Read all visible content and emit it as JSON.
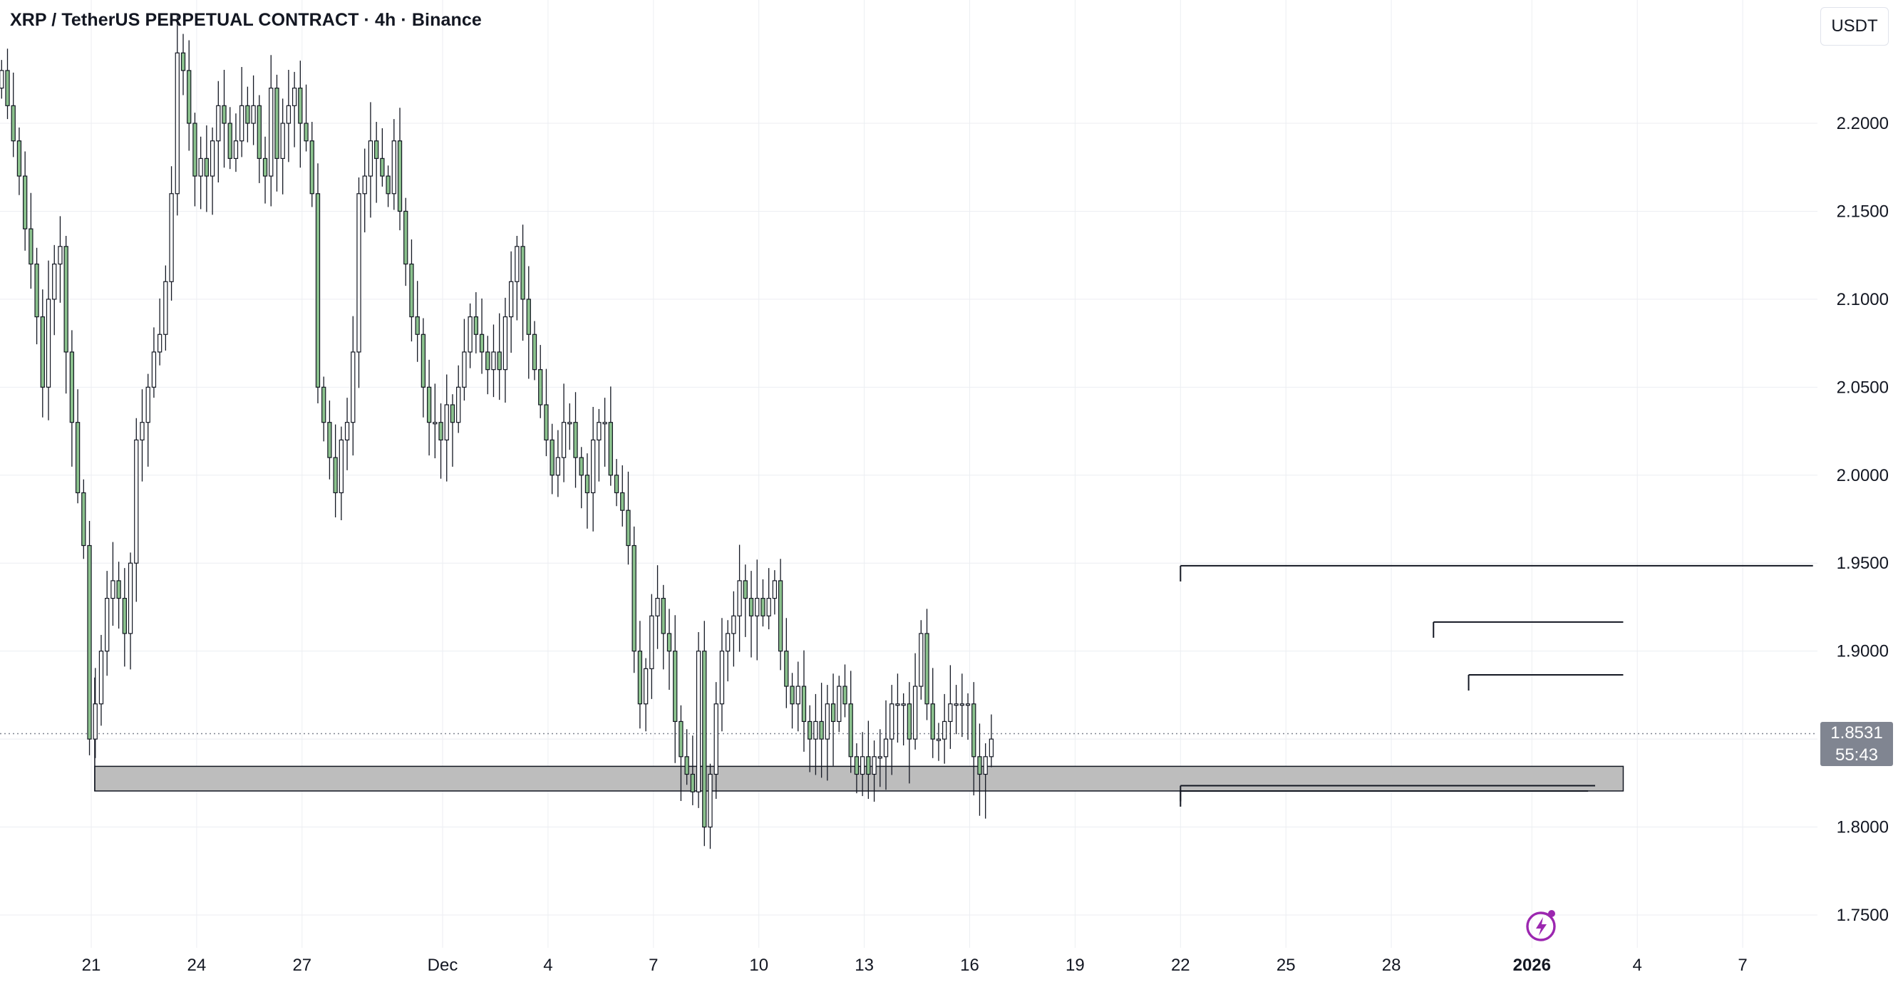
{
  "header": {
    "title": "XRP / TetherUS PERPETUAL CONTRACT · 4h · Binance",
    "currency_button": "USDT"
  },
  "last_price": {
    "label": "1.8531",
    "countdown": "55:43"
  },
  "colors": {
    "up_candle_body": "#ffffff",
    "down_candle_body": "#8bc28d",
    "candle_outline": "#131722",
    "grid": "#eceef2",
    "zone_fill": "#bdbdbd",
    "level_line": "#131722",
    "last_price_badge": "#808591",
    "logo_accent": "#9c27b0"
  },
  "icons": {
    "bottom_logo": "lightning-bolt-icon"
  },
  "chart_data": {
    "type": "candlestick",
    "title": "XRP / TetherUS PERPETUAL CONTRACT · 4h · Binance",
    "interval": "4h",
    "exchange": "Binance",
    "quote_currency": "USDT",
    "ylim": [
      1.73,
      2.28
    ],
    "grid": true,
    "y_ticks": [
      "2.2000",
      "2.1500",
      "2.1000",
      "2.0500",
      "2.0000",
      "1.9500",
      "1.9000",
      "1.8500",
      "1.8000",
      "1.7500"
    ],
    "x_ticks": [
      {
        "label": "21",
        "day": 0
      },
      {
        "label": "24",
        "day": 3
      },
      {
        "label": "27",
        "day": 6
      },
      {
        "label": "Dec",
        "day": 10
      },
      {
        "label": "4",
        "day": 13
      },
      {
        "label": "7",
        "day": 16
      },
      {
        "label": "10",
        "day": 19
      },
      {
        "label": "13",
        "day": 22
      },
      {
        "label": "16",
        "day": 25
      },
      {
        "label": "19",
        "day": 28
      },
      {
        "label": "22",
        "day": 31
      },
      {
        "label": "25",
        "day": 34
      },
      {
        "label": "28",
        "day": 37
      },
      {
        "label": "2026",
        "day": 41
      },
      {
        "label": "4",
        "day": 44
      },
      {
        "label": "7",
        "day": 47
      }
    ],
    "x_start_day": -2.6,
    "x_end_day": 49.2,
    "candles_per_day": 6,
    "first_candle_day": -2.55,
    "candle_closes": [
      2.23,
      2.21,
      2.19,
      2.17,
      2.14,
      2.12,
      2.09,
      2.05,
      2.1,
      2.12,
      2.13,
      2.07,
      2.03,
      1.99,
      1.96,
      1.85,
      1.87,
      1.9,
      1.93,
      1.94,
      1.93,
      1.91,
      1.95,
      2.02,
      2.03,
      2.05,
      2.07,
      2.08,
      2.11,
      2.16,
      2.24,
      2.23,
      2.2,
      2.17,
      2.18,
      2.17,
      2.19,
      2.21,
      2.2,
      2.18,
      2.19,
      2.21,
      2.2,
      2.21,
      2.18,
      2.17,
      2.22,
      2.18,
      2.2,
      2.21,
      2.22,
      2.2,
      2.19,
      2.16,
      2.05,
      2.03,
      2.01,
      1.99,
      2.02,
      2.03,
      2.07,
      2.16,
      2.17,
      2.19,
      2.18,
      2.17,
      2.16,
      2.19,
      2.15,
      2.12,
      2.09,
      2.08,
      2.05,
      2.03,
      2.03,
      2.02,
      2.04,
      2.03,
      2.05,
      2.07,
      2.09,
      2.08,
      2.07,
      2.06,
      2.07,
      2.06,
      2.09,
      2.11,
      2.13,
      2.1,
      2.08,
      2.06,
      2.04,
      2.02,
      2.0,
      2.01,
      2.03,
      2.03,
      2.01,
      2.0,
      1.99,
      2.02,
      2.03,
      2.03,
      2.0,
      1.99,
      1.98,
      1.96,
      1.9,
      1.87,
      1.89,
      1.92,
      1.93,
      1.91,
      1.9,
      1.86,
      1.84,
      1.83,
      1.82,
      1.9,
      1.8,
      1.83,
      1.87,
      1.9,
      1.91,
      1.92,
      1.94,
      1.93,
      1.92,
      1.93,
      1.92,
      1.93,
      1.94,
      1.9,
      1.88,
      1.87,
      1.88,
      1.86,
      1.85,
      1.86,
      1.85,
      1.87,
      1.86,
      1.88,
      1.87,
      1.84,
      1.83,
      1.84,
      1.83,
      1.84,
      1.84,
      1.85,
      1.87,
      1.87,
      1.87,
      1.85,
      1.88,
      1.91,
      1.87,
      1.85,
      1.85,
      1.86,
      1.87,
      1.87,
      1.87,
      1.87,
      1.84,
      1.83,
      1.84,
      1.85
    ],
    "open_first": 2.22,
    "support_zone": {
      "low": 1.8205,
      "high": 1.8345,
      "from_day": 0.1,
      "to_day": 43.6
    },
    "drawn_levels": [
      {
        "price": 1.9485,
        "from_day": 31.0,
        "to_day": 49.0
      },
      {
        "price": 1.9165,
        "from_day": 38.2,
        "to_day": 43.6
      },
      {
        "price": 1.8865,
        "from_day": 39.2,
        "to_day": 43.6
      },
      {
        "price": 1.8235,
        "from_day": 31.0,
        "to_day": 42.8
      },
      {
        "price": 1.8205,
        "from_day": 31.0,
        "to_day": 42.6
      }
    ],
    "last_price_line": 1.8531
  }
}
